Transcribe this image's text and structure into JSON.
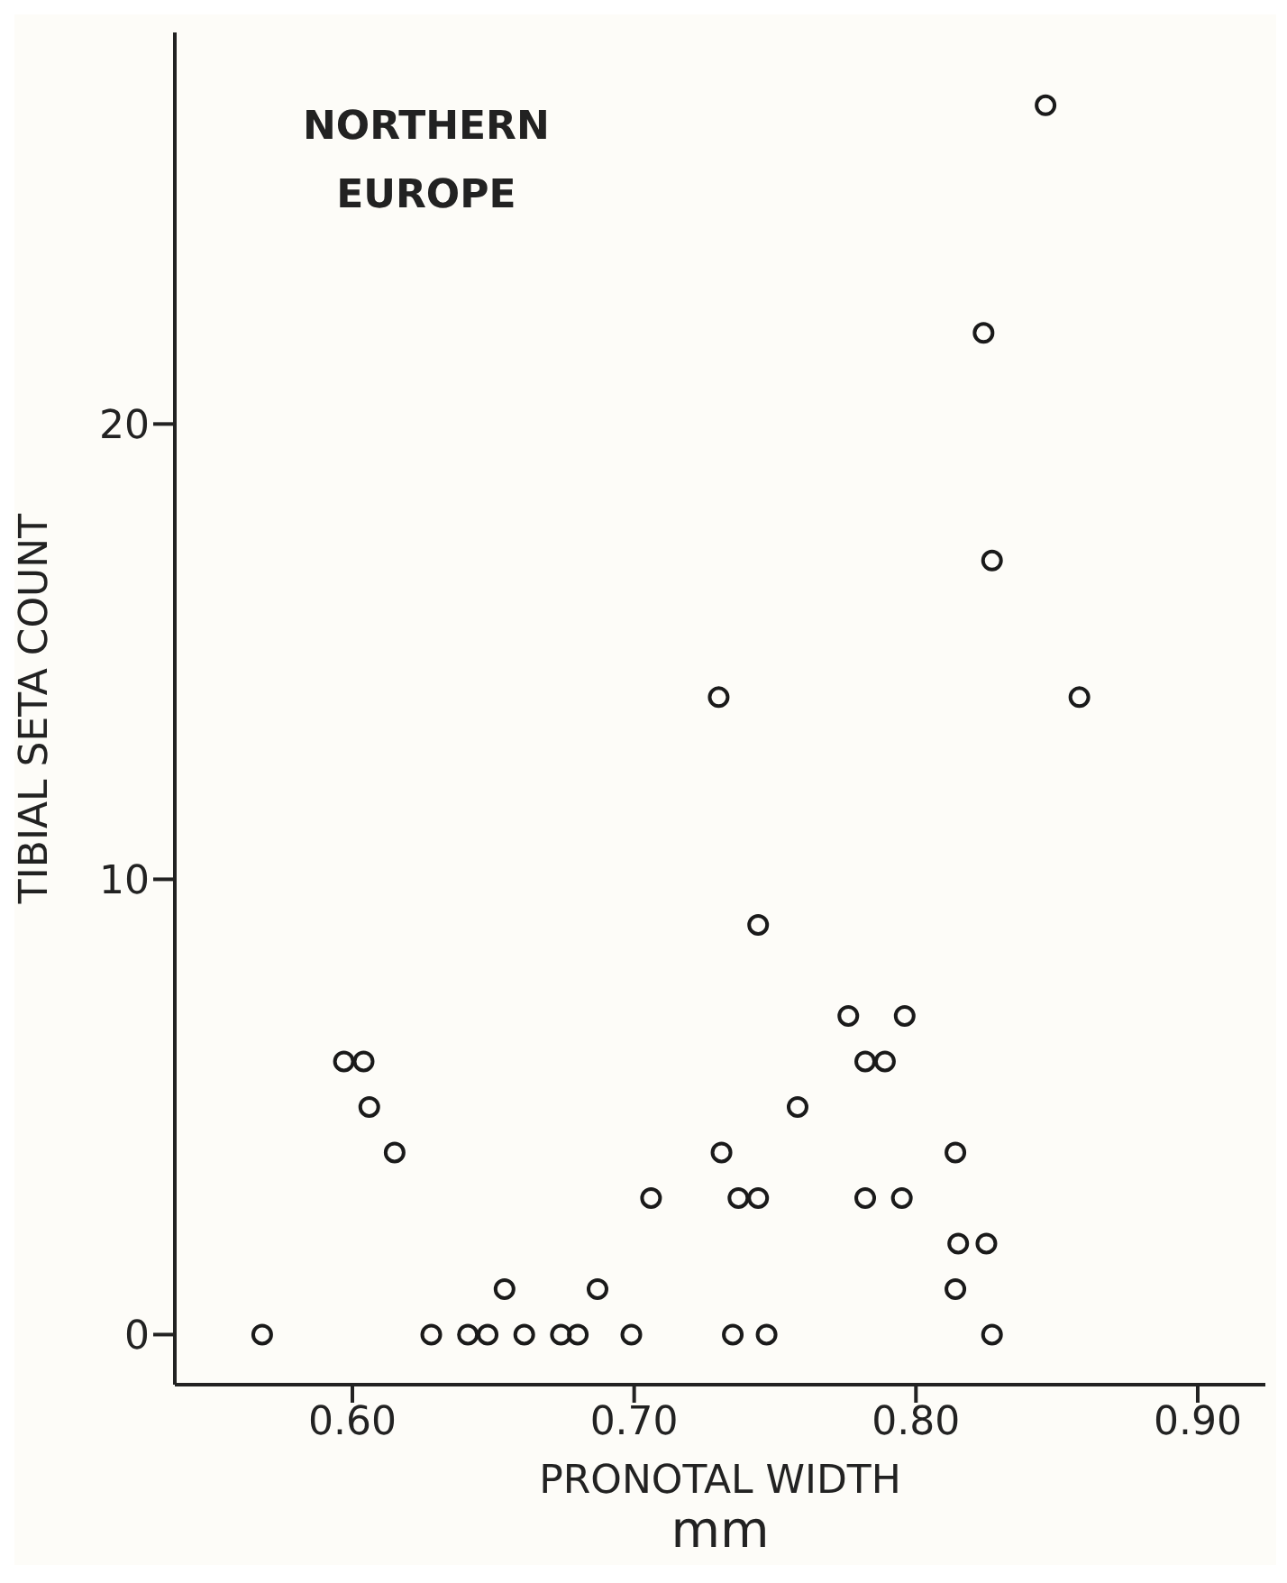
{
  "chart_data": {
    "type": "scatter",
    "xlabel": "PRONOTAL WIDTH\nmm",
    "ylabel": "TIBIAL SETA COUNT",
    "annotations": [
      "NORTHERN\nEUROPE"
    ],
    "x": [
      0.568,
      0.597,
      0.604,
      0.606,
      0.615,
      0.628,
      0.641,
      0.648,
      0.654,
      0.661,
      0.674,
      0.68,
      0.687,
      0.699,
      0.706,
      0.73,
      0.731,
      0.735,
      0.737,
      0.744,
      0.744,
      0.747,
      0.758,
      0.776,
      0.782,
      0.789,
      0.782,
      0.796,
      0.795,
      0.814,
      0.815,
      0.814,
      0.825,
      0.824,
      0.827,
      0.827,
      0.846,
      0.858
    ],
    "series": [
      {
        "color": "#1a1a1a",
        "values": [
          0,
          6,
          6,
          5,
          4,
          0,
          0,
          0,
          1,
          0,
          0,
          0,
          1,
          0,
          3,
          14,
          4,
          0,
          3,
          3,
          9,
          0,
          5,
          7,
          6,
          6,
          3,
          7,
          3,
          4,
          2,
          1,
          2,
          22,
          17,
          0,
          27,
          14
        ]
      }
    ],
    "xlim": [
      0.537,
      0.924
    ],
    "xticks": [
      {
        "value": 0.6,
        "label": "0.60"
      },
      {
        "value": 0.7,
        "label": "0.70"
      },
      {
        "value": 0.8,
        "label": "0.80"
      },
      {
        "value": 0.9,
        "label": "0.90"
      }
    ],
    "ylim": [
      -1.1,
      28.6
    ],
    "yticks": [
      0,
      10,
      20
    ],
    "grid": false,
    "legend": false,
    "marker": "circle"
  }
}
